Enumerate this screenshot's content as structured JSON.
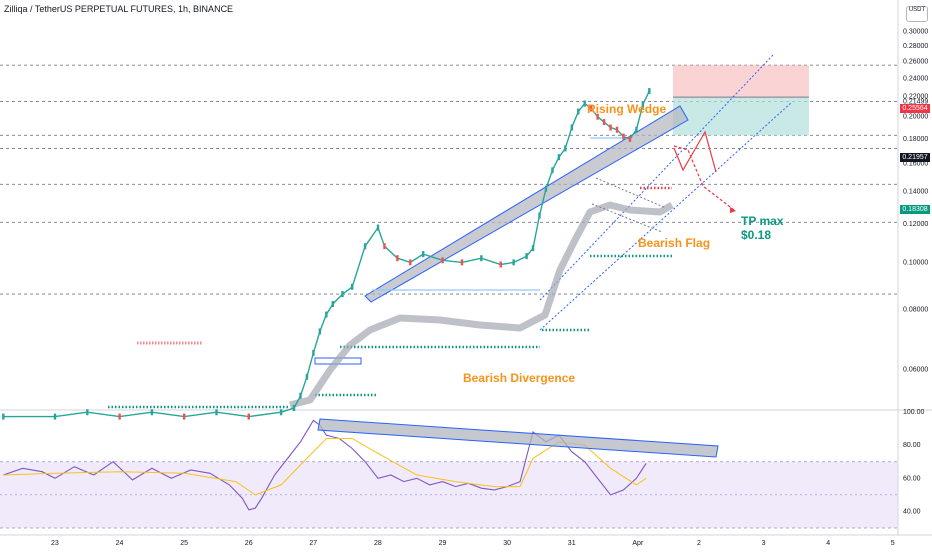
{
  "header": {
    "title": "Zilliqa / TetherUS PERPETUAL FUTURES, 1h, BINANCE"
  },
  "currency_button": "USDT",
  "annotations": {
    "rising_wedge": "Rising Wedge",
    "bearish_flag": "Bearish Flag",
    "bearish_divergence": "Bearish Divergence",
    "tp_max_line1": "TP max",
    "tp_max_line2": "$0.18"
  },
  "price_tags": {
    "stop": "0.25564",
    "current": "0.21957",
    "target": "0.18308"
  },
  "colors": {
    "orange": "#f7931a",
    "green_text": "#089981",
    "blue_line": "#2962ff",
    "red_zone": "#f7b6b9",
    "green_zone": "#b2dfdb",
    "rsi_line": "#7e57c2",
    "rsi_ma": "#f7c31a"
  },
  "chart_data": [
    {
      "type": "line",
      "panel": "price",
      "xlabel": "",
      "ylabel": "",
      "ylim": [
        0.05,
        0.32
      ],
      "y_scale": "log",
      "y_ticks": [
        "0.30000",
        "0.28000",
        "0.26000",
        "0.24000",
        "0.22000",
        "0.21499",
        "0.20000",
        "0.18000",
        "0.16000",
        "0.14000",
        "0.12000",
        "0.10000",
        "0.08000",
        "0.06000"
      ],
      "x_ticks": [
        "23",
        "24",
        "25",
        "26",
        "27",
        "28",
        "29",
        "30",
        "31",
        "Apr",
        "2",
        "3",
        "4",
        "5"
      ],
      "x_tick_positions": [
        0,
        1,
        2,
        3,
        4,
        5,
        6,
        7,
        8,
        9,
        10,
        11,
        12,
        13
      ],
      "series": [
        {
          "values_x": [
            -0.8,
            0,
            0.5,
            1,
            1.5,
            2,
            2.5,
            3,
            3.5,
            3.7,
            3.8,
            3.9,
            4,
            4.1,
            4.2,
            4.3,
            4.45,
            4.6,
            4.8,
            5,
            5.1,
            5.3,
            5.5,
            5.7,
            6,
            6.3,
            6.6,
            6.9,
            7.1,
            7.3,
            7.4,
            7.5,
            7.6,
            7.7,
            7.8,
            7.9,
            8,
            8.1,
            8.2,
            8.3,
            8.4,
            8.5,
            8.6,
            8.7,
            8.8,
            8.9,
            9,
            9.1,
            9.2
          ],
          "values_y": [
            0.048,
            0.048,
            0.049,
            0.048,
            0.049,
            0.048,
            0.049,
            0.048,
            0.049,
            0.05,
            0.053,
            0.058,
            0.065,
            0.072,
            0.078,
            0.082,
            0.086,
            0.089,
            0.108,
            0.118,
            0.108,
            0.102,
            0.1,
            0.104,
            0.101,
            0.1,
            0.102,
            0.099,
            0.1,
            0.103,
            0.107,
            0.125,
            0.142,
            0.155,
            0.165,
            0.172,
            0.19,
            0.205,
            0.213,
            0.208,
            0.2,
            0.195,
            0.19,
            0.188,
            0.182,
            0.18,
            0.188,
            0.212,
            0.226
          ]
        }
      ],
      "levels": [
        0.25564,
        0.21499,
        0.18308,
        0.172,
        0.145,
        0.121,
        0.086
      ],
      "trade": {
        "entry": 0.21957,
        "stop": 0.25564,
        "target": 0.18308
      }
    },
    {
      "type": "line",
      "panel": "rsi",
      "xlabel": "",
      "ylabel": "",
      "ylim": [
        30,
        100
      ],
      "y_ticks": [
        "100.00",
        "80.00",
        "60.00",
        "40.00"
      ],
      "bands": [
        70,
        30
      ],
      "series": [
        {
          "values_x": [
            -0.8,
            -0.5,
            -0.2,
            0,
            0.3,
            0.6,
            0.9,
            1.2,
            1.5,
            1.8,
            2.1,
            2.4,
            2.7,
            2.9,
            3,
            3.1,
            3.2,
            3.4,
            3.6,
            3.8,
            4,
            4.1,
            4.2,
            4.4,
            4.6,
            4.8,
            5,
            5.2,
            5.4,
            5.6,
            5.8,
            6,
            6.2,
            6.4,
            6.6,
            6.8,
            7,
            7.2,
            7.4,
            7.6,
            7.8,
            8,
            8.2,
            8.4,
            8.6,
            8.8,
            9,
            9.15
          ],
          "values_y": [
            62,
            66,
            64,
            60,
            67,
            62,
            70,
            59,
            66,
            60,
            65,
            63,
            56,
            48,
            41,
            42,
            48,
            62,
            72,
            82,
            95,
            92,
            86,
            84,
            78,
            70,
            60,
            62,
            58,
            60,
            56,
            58,
            55,
            57,
            54,
            53,
            55,
            58,
            88,
            82,
            86,
            76,
            70,
            60,
            50,
            53,
            60,
            69
          ]
        },
        {
          "values_x": [
            -0.8,
            0,
            1,
            2,
            2.8,
            3.1,
            3.5,
            3.9,
            4.2,
            4.6,
            5,
            5.6,
            6.2,
            6.8,
            7.2,
            7.4,
            7.8,
            8.2,
            8.6,
            9,
            9.15
          ],
          "values_y": [
            62,
            63,
            64,
            63,
            58,
            50,
            56,
            72,
            84,
            84,
            75,
            62,
            58,
            55,
            55,
            72,
            82,
            80,
            66,
            56,
            60
          ]
        }
      ]
    }
  ]
}
